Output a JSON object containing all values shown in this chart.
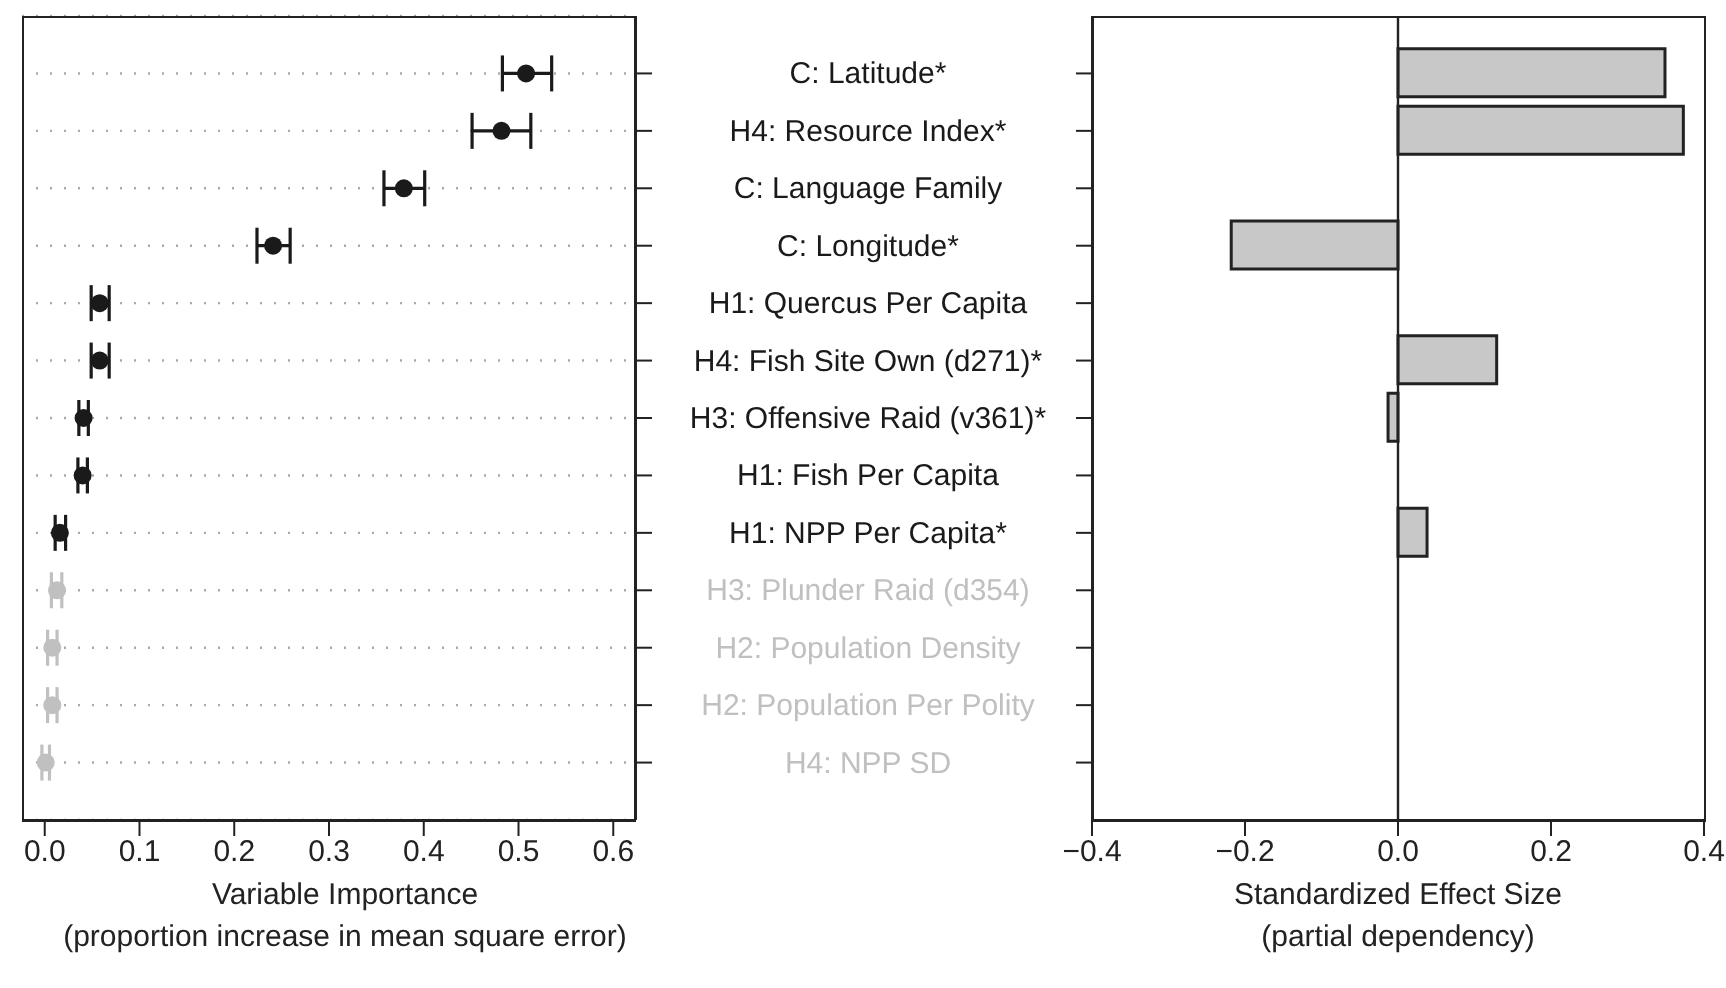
{
  "chart_data": [
    {
      "type": "scatter",
      "orientation": "horizontal",
      "categories": [
        "C: Latitude*",
        "H4: Resource Index*",
        "C: Language Family",
        "C: Longitude*",
        "H1: Quercus Per Capita",
        "H4: Fish Site Own (d271)*",
        "H3: Offensive Raid (v361)*",
        "H1: Fish Per Capita",
        "H1: NPP Per Capita*",
        "H3: Plunder Raid (d354)",
        "H2: Population Density",
        "H2: Population Per Polity",
        "H4: NPP SD"
      ],
      "series": [
        {
          "color": "#1a1a1a",
          "values": [
            0.508,
            0.482,
            0.379,
            0.241,
            0.058,
            0.058,
            0.041,
            0.04,
            0.016,
            null,
            null,
            null,
            null
          ],
          "errors": [
            [
              0.483,
              0.535
            ],
            [
              0.451,
              0.513
            ],
            [
              0.358,
              0.401
            ],
            [
              0.224,
              0.259
            ],
            [
              0.049,
              0.068
            ],
            [
              0.049,
              0.068
            ],
            [
              0.036,
              0.046
            ],
            [
              0.035,
              0.045
            ],
            [
              0.011,
              0.022
            ],
            null,
            null,
            null,
            null
          ]
        },
        {
          "color": "#c0c0c0",
          "values": [
            null,
            null,
            null,
            null,
            null,
            null,
            null,
            null,
            null,
            0.013,
            0.008,
            0.008,
            0.001
          ],
          "errors": [
            null,
            null,
            null,
            null,
            null,
            null,
            null,
            null,
            null,
            [
              0.007,
              0.018
            ],
            [
              0.003,
              0.013
            ],
            [
              0.003,
              0.013
            ],
            [
              -0.003,
              0.005
            ]
          ]
        }
      ],
      "xlim": [
        -0.024,
        0.624
      ],
      "xticks": [
        {
          "value": 0,
          "label": "0.0"
        },
        0.1,
        0.2,
        0.3,
        0.4,
        0.5,
        0.6
      ],
      "grid": "y",
      "marker": "circle",
      "xlabel": "Variable Importance\n(proportion increase in mean square error)"
    },
    {
      "type": "bar",
      "orientation": "horizontal",
      "categories": [
        null,
        null,
        null,
        null,
        null,
        null,
        null,
        null,
        null,
        null,
        null,
        null,
        null
      ],
      "values": [
        0.349,
        0.373,
        null,
        -0.218,
        null,
        0.129,
        -0.013,
        null,
        0.038,
        null,
        null,
        null,
        null
      ],
      "color": "#c8c8c8",
      "xlim": [
        -0.4,
        0.4
      ],
      "xticks": [
        {
          "value": -0.4,
          "label": "−0.4"
        },
        {
          "value": -0.2,
          "label": "−0.2"
        },
        {
          "value": 0,
          "label": "0.0"
        },
        0.2,
        0.4
      ],
      "ref_lines": [
        {
          "axis": "x",
          "value": 0
        }
      ],
      "tick_labels": "x",
      "xlabel": "Standardized Effect Size\n(partial dependency)"
    }
  ]
}
